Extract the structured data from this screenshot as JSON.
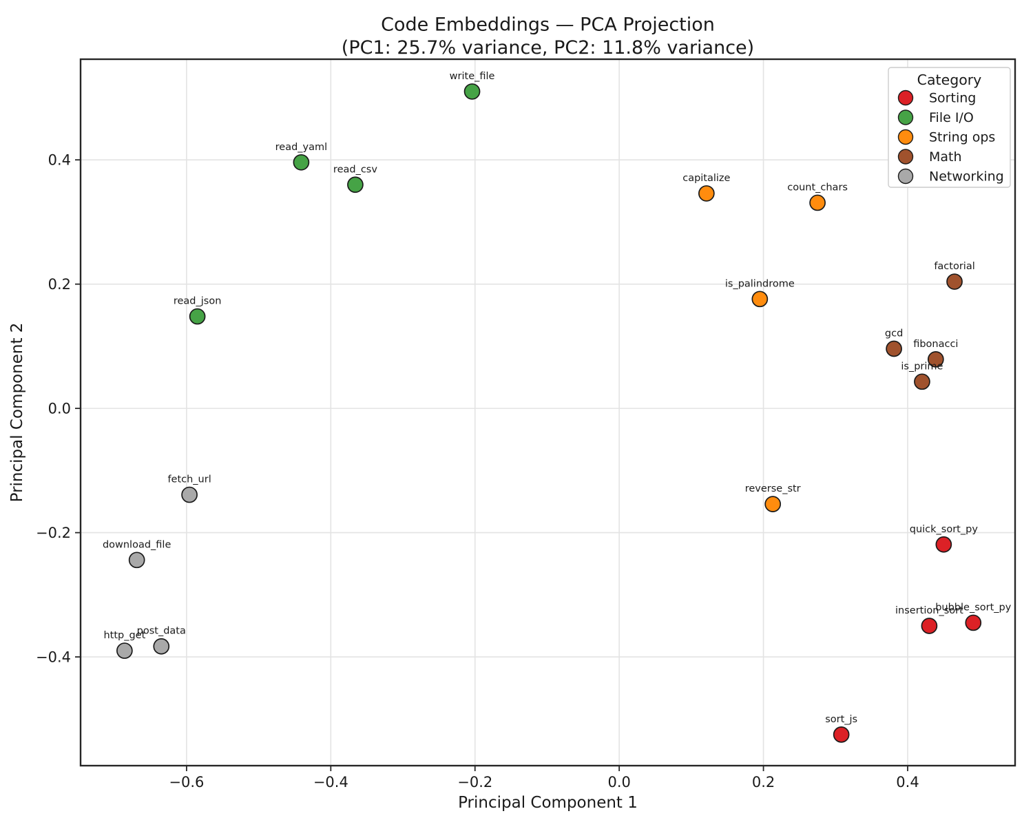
{
  "title": "Code Embeddings — PCA Projection",
  "subtitle": "(PC1: 25.7% variance, PC2: 11.8% variance)",
  "chart_data": {
    "type": "scatter",
    "xlabel": "Principal Component 1",
    "ylabel": "Principal Component 2",
    "xlim": [
      -0.747,
      0.549
    ],
    "ylim": [
      -0.575,
      0.562
    ],
    "xticks": [
      -0.6,
      -0.4,
      -0.2,
      0.0,
      0.2,
      0.4
    ],
    "yticks": [
      -0.4,
      -0.2,
      0.0,
      0.2,
      0.4
    ],
    "grid": true,
    "marker_edge_color": "#1a1a1a",
    "legend": {
      "title": "Category",
      "position": "upper right"
    },
    "series": [
      {
        "name": "Sorting",
        "color": "#dc2126",
        "points": [
          {
            "label": "quick_sort_py",
            "x": 0.45,
            "y": -0.219
          },
          {
            "label": "insertion_sort",
            "x": 0.43,
            "y": -0.35
          },
          {
            "label": "bubble_sort_py",
            "x": 0.491,
            "y": -0.345
          },
          {
            "label": "sort_js",
            "x": 0.308,
            "y": -0.525
          }
        ]
      },
      {
        "name": "File I/O",
        "color": "#46a346",
        "points": [
          {
            "label": "write_file",
            "x": -0.204,
            "y": 0.51
          },
          {
            "label": "read_yaml",
            "x": -0.441,
            "y": 0.396
          },
          {
            "label": "read_csv",
            "x": -0.366,
            "y": 0.36
          },
          {
            "label": "read_json",
            "x": -0.585,
            "y": 0.148
          }
        ]
      },
      {
        "name": "String ops",
        "color": "#ff8c0e",
        "points": [
          {
            "label": "capitalize",
            "x": 0.121,
            "y": 0.346
          },
          {
            "label": "count_chars",
            "x": 0.275,
            "y": 0.331
          },
          {
            "label": "is_palindrome",
            "x": 0.195,
            "y": 0.176
          },
          {
            "label": "reverse_str",
            "x": 0.213,
            "y": -0.154
          }
        ]
      },
      {
        "name": "Math",
        "color": "#a0522d",
        "points": [
          {
            "label": "factorial",
            "x": 0.465,
            "y": 0.204
          },
          {
            "label": "gcd",
            "x": 0.381,
            "y": 0.096
          },
          {
            "label": "fibonacci",
            "x": 0.439,
            "y": 0.079
          },
          {
            "label": "is_prime",
            "x": 0.42,
            "y": 0.043
          }
        ]
      },
      {
        "name": "Networking",
        "color": "#a9a9a9",
        "points": [
          {
            "label": "fetch_url",
            "x": -0.596,
            "y": -0.139
          },
          {
            "label": "download_file",
            "x": -0.669,
            "y": -0.244
          },
          {
            "label": "http_get",
            "x": -0.686,
            "y": -0.39
          },
          {
            "label": "post_data",
            "x": -0.635,
            "y": -0.383
          }
        ]
      }
    ]
  }
}
